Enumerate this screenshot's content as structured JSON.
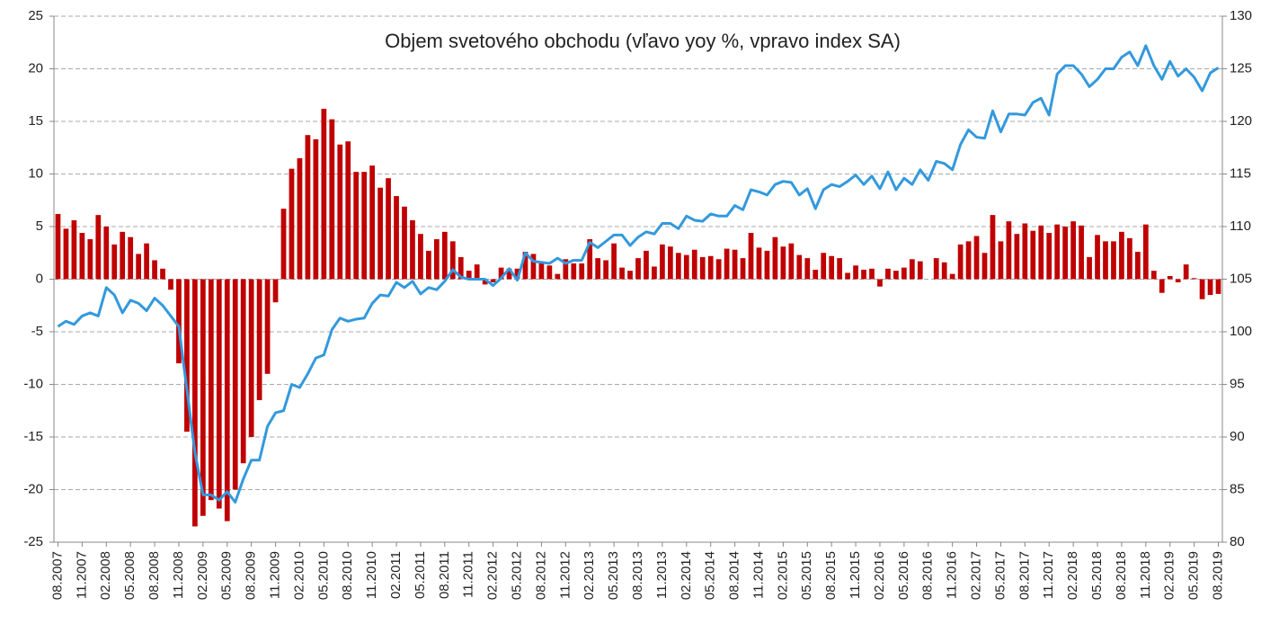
{
  "chart_data": {
    "type": "bar-line",
    "title": "Objem svetového obchodu (vľavo yoy %, vpravo index SA)",
    "categories": [
      "08.2007",
      null,
      null,
      "11.2007",
      null,
      null,
      "02.2008",
      null,
      null,
      "05.2008",
      null,
      null,
      "08.2008",
      null,
      null,
      "11.2008",
      null,
      null,
      "02.2009",
      null,
      null,
      "05.2009",
      null,
      null,
      "08.2009",
      null,
      null,
      "11.2009",
      null,
      null,
      "02.2010",
      null,
      null,
      "05.2010",
      null,
      null,
      "08.2010",
      null,
      null,
      "11.2010",
      null,
      null,
      "02.2011",
      null,
      null,
      "05.2011",
      null,
      null,
      "08.2011",
      null,
      null,
      "11.2011",
      null,
      null,
      "02.2012",
      null,
      null,
      "05.2012",
      null,
      null,
      "08.2012",
      null,
      null,
      "11.2012",
      null,
      null,
      "02.2013",
      null,
      null,
      "05.2013",
      null,
      null,
      "08.2013",
      null,
      null,
      "11.2013",
      null,
      null,
      "02.2014",
      null,
      null,
      "05.2014",
      null,
      null,
      "08.2014",
      null,
      null,
      "11.2014",
      null,
      null,
      "02.2015",
      null,
      null,
      "05.2015",
      null,
      null,
      "08.2015",
      null,
      null,
      "11.2015",
      null,
      null,
      "02.2016",
      null,
      null,
      "05.2016",
      null,
      null,
      "08.2016",
      null,
      null,
      "11.2016",
      null,
      null,
      "02.2017",
      null,
      null,
      "05.2017",
      null,
      null,
      "08.2017",
      null,
      null,
      "11.2017",
      null,
      null,
      "02.2018",
      null,
      null,
      "05.2018",
      null,
      null,
      "08.2018",
      null,
      null,
      "11.2018",
      null,
      null,
      "02.2019",
      null,
      null,
      "05.2019",
      null,
      null,
      "08.2019"
    ],
    "series": [
      {
        "name": "yoy %",
        "type": "bar",
        "axis": "y",
        "color": "#c00000",
        "values": [
          6.2,
          4.8,
          5.6,
          4.4,
          3.8,
          6.1,
          5.0,
          3.3,
          4.5,
          4.0,
          2.4,
          3.4,
          1.8,
          1.0,
          -1.0,
          -8.0,
          -14.5,
          -23.5,
          -22.5,
          -21.0,
          -21.8,
          -23.0,
          -20.0,
          -17.5,
          -15.0,
          -11.5,
          -9.0,
          -2.2,
          6.7,
          10.5,
          11.5,
          13.7,
          13.3,
          16.2,
          15.2,
          12.8,
          13.1,
          10.2,
          10.2,
          10.8,
          8.7,
          9.6,
          7.9,
          6.9,
          5.6,
          4.3,
          2.7,
          3.8,
          4.5,
          3.6,
          2.1,
          0.8,
          1.4,
          -0.5,
          -0.3,
          1.1,
          1.0,
          1.0,
          2.6,
          2.4,
          1.7,
          1.3,
          0.5,
          1.9,
          1.5,
          1.5,
          3.8,
          2.0,
          1.8,
          3.4,
          1.1,
          0.8,
          2.0,
          2.7,
          1.2,
          3.3,
          3.1,
          2.5,
          2.3,
          2.8,
          2.1,
          2.2,
          1.9,
          2.9,
          2.8,
          2.0,
          4.4,
          3.0,
          2.7,
          4.0,
          3.1,
          3.4,
          2.3,
          2.0,
          0.9,
          2.5,
          2.2,
          2.0,
          0.6,
          1.3,
          0.9,
          1.0,
          -0.7,
          1.0,
          0.8,
          1.1,
          1.9,
          1.7,
          0.0,
          2.0,
          1.6,
          0.5,
          3.3,
          3.6,
          4.1,
          2.5,
          6.1,
          3.6,
          5.5,
          4.3,
          5.3,
          4.6,
          5.1,
          4.4,
          5.2,
          5.0,
          5.5,
          5.1,
          2.1,
          4.2,
          3.6,
          3.6,
          4.5,
          3.9,
          2.6,
          5.2,
          0.8,
          -1.3,
          0.3,
          -0.3,
          1.4,
          0.1,
          -1.9,
          -1.5,
          -1.4
        ]
      },
      {
        "name": "index SA",
        "type": "line",
        "axis": "y2",
        "color": "#3399dd",
        "values": [
          100.5,
          101.0,
          100.7,
          101.5,
          101.8,
          101.5,
          104.2,
          103.5,
          101.8,
          103.0,
          102.7,
          102.0,
          103.2,
          102.5,
          101.5,
          100.5,
          94.5,
          88.5,
          84.5,
          84.5,
          84.0,
          84.8,
          83.8,
          86.0,
          87.8,
          87.8,
          91.0,
          92.3,
          92.5,
          95.0,
          94.7,
          96.0,
          97.5,
          97.8,
          100.2,
          101.3,
          101.0,
          101.2,
          101.3,
          102.7,
          103.5,
          103.4,
          104.7,
          104.2,
          104.8,
          103.6,
          104.2,
          104.0,
          104.8,
          105.9,
          105.2,
          105.0,
          105.0,
          105.0,
          104.4,
          105.1,
          106.0,
          104.9,
          107.5,
          106.7,
          106.6,
          106.5,
          107.0,
          106.5,
          106.8,
          106.8,
          108.5,
          108.0,
          108.6,
          109.2,
          109.2,
          108.2,
          109.0,
          109.5,
          109.3,
          110.3,
          110.3,
          109.8,
          111.0,
          110.6,
          110.5,
          111.2,
          111.0,
          111.0,
          112.0,
          111.6,
          113.5,
          113.3,
          113.0,
          114.0,
          114.3,
          114.2,
          113.0,
          113.6,
          111.7,
          113.5,
          114.0,
          113.8,
          114.3,
          114.9,
          114.0,
          114.8,
          113.6,
          115.2,
          113.5,
          114.6,
          114.0,
          115.4,
          114.4,
          116.2,
          116.0,
          115.4,
          117.8,
          119.2,
          118.5,
          118.4,
          121.0,
          119.0,
          120.7,
          120.7,
          120.6,
          121.8,
          122.2,
          120.6,
          124.5,
          125.3,
          125.3,
          124.5,
          123.3,
          124.0,
          125.0,
          125.0,
          126.1,
          126.6,
          125.3,
          127.2,
          125.3,
          124.0,
          125.7,
          124.3,
          125.0,
          124.2,
          122.9,
          124.6,
          125.1
        ]
      }
    ],
    "ylim": [
      -25,
      25
    ],
    "yticks": [
      -25,
      -20,
      -15,
      -10,
      -5,
      0,
      5,
      10,
      15,
      20,
      25
    ],
    "y2lim": [
      80,
      130
    ],
    "y2ticks": [
      80,
      85,
      90,
      95,
      100,
      105,
      110,
      115,
      120,
      125,
      130
    ],
    "grid": true
  }
}
